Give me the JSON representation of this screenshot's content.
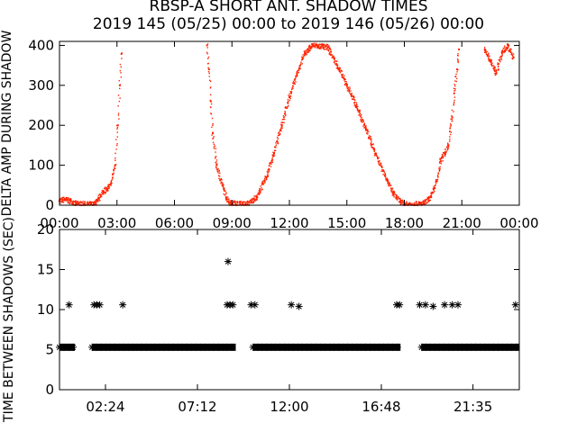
{
  "figure": {
    "title_line1": "RBSP-A SHORT ANT. SHADOW TIMES",
    "title_line2": "2019 145 (05/25) 00:00 to 2019 146 (05/26) 00:00"
  },
  "colors": {
    "background": "#ffffff",
    "axes": "#000000",
    "top_series": "#ff2200",
    "bottom_series": "#000000"
  },
  "chart_data": [
    {
      "type": "scatter",
      "ylabel": "DELTA AMP DURING SHADOW",
      "ylim": [
        0,
        410
      ],
      "xlim": [
        0,
        24
      ],
      "ytick_labels": [
        "0",
        "100",
        "200",
        "300",
        "400"
      ],
      "yticks": [
        0,
        100,
        200,
        300,
        400
      ],
      "xtick_labels": [
        "00:00",
        "03:00",
        "06:00",
        "09:00",
        "12:00",
        "15:00",
        "18:00",
        "21:00",
        "00:00"
      ],
      "xticks": [
        0,
        3,
        6,
        9,
        12,
        15,
        18,
        21,
        24
      ],
      "grid": false,
      "series": [
        {
          "color": "#ff2200",
          "points": [
            [
              0.0,
              12
            ],
            [
              0.3,
              14
            ],
            [
              0.6,
              10
            ],
            [
              0.85,
              3
            ],
            [
              1.8,
              2
            ],
            [
              2.0,
              10
            ],
            [
              2.15,
              25
            ],
            [
              2.3,
              35
            ],
            [
              2.5,
              40
            ],
            [
              2.7,
              55
            ],
            [
              2.9,
              100
            ],
            [
              3.05,
              200
            ],
            [
              3.15,
              300
            ],
            [
              3.25,
              380
            ],
            [
              7.7,
              400
            ],
            [
              7.8,
              340
            ],
            [
              7.9,
              260
            ],
            [
              8.0,
              180
            ],
            [
              8.2,
              100
            ],
            [
              8.5,
              50
            ],
            [
              8.7,
              20
            ],
            [
              8.9,
              5
            ],
            [
              9.8,
              2
            ],
            [
              10.3,
              20
            ],
            [
              10.8,
              70
            ],
            [
              11.2,
              130
            ],
            [
              11.6,
              200
            ],
            [
              12.0,
              270
            ],
            [
              12.4,
              330
            ],
            [
              12.8,
              380
            ],
            [
              13.2,
              400
            ],
            [
              14.0,
              395
            ],
            [
              14.5,
              350
            ],
            [
              15.0,
              300
            ],
            [
              15.5,
              250
            ],
            [
              16.0,
              190
            ],
            [
              16.5,
              130
            ],
            [
              17.0,
              75
            ],
            [
              17.4,
              30
            ],
            [
              17.8,
              8
            ],
            [
              18.0,
              2
            ],
            [
              19.0,
              3
            ],
            [
              19.4,
              20
            ],
            [
              19.7,
              60
            ],
            [
              19.9,
              110
            ],
            [
              20.1,
              130
            ],
            [
              20.3,
              150
            ],
            [
              20.5,
              220
            ],
            [
              20.6,
              280
            ],
            [
              20.75,
              340
            ],
            [
              20.85,
              390
            ],
            [
              22.2,
              390
            ],
            [
              22.5,
              360
            ],
            [
              22.8,
              330
            ],
            [
              23.1,
              380
            ],
            [
              23.4,
              400
            ],
            [
              23.7,
              370
            ]
          ]
        }
      ]
    },
    {
      "type": "scatter",
      "ylabel": "TIME BETWEEN SHADOWS (SEC)",
      "ylim": [
        0,
        20
      ],
      "xlim": [
        0,
        24
      ],
      "ytick_labels": [
        "0",
        "5",
        "10",
        "15",
        "20"
      ],
      "yticks": [
        0,
        5,
        10,
        15,
        20
      ],
      "xtick_labels": [
        "02:24",
        "07:12",
        "12:00",
        "16:48",
        "21:35"
      ],
      "xticks": [
        2.4,
        7.2,
        12.0,
        16.8,
        21.583
      ],
      "grid": false,
      "baseline": {
        "value": 5.3,
        "segments": [
          [
            0.0,
            0.8
          ],
          [
            1.7,
            9.2
          ],
          [
            10.1,
            17.8
          ],
          [
            18.9,
            24.0
          ]
        ]
      },
      "outliers": [
        [
          0.5,
          10.6
        ],
        [
          1.8,
          10.6
        ],
        [
          1.95,
          10.6
        ],
        [
          2.1,
          10.6
        ],
        [
          3.3,
          10.6
        ],
        [
          8.8,
          16.0
        ],
        [
          8.75,
          10.6
        ],
        [
          8.9,
          10.6
        ],
        [
          9.05,
          10.6
        ],
        [
          10.0,
          10.6
        ],
        [
          10.2,
          10.6
        ],
        [
          12.1,
          10.6
        ],
        [
          12.5,
          10.4
        ],
        [
          17.6,
          10.6
        ],
        [
          17.75,
          10.6
        ],
        [
          18.8,
          10.6
        ],
        [
          19.1,
          10.6
        ],
        [
          19.5,
          10.4
        ],
        [
          20.1,
          10.6
        ],
        [
          20.5,
          10.6
        ],
        [
          20.8,
          10.6
        ],
        [
          23.8,
          10.6
        ]
      ]
    }
  ]
}
